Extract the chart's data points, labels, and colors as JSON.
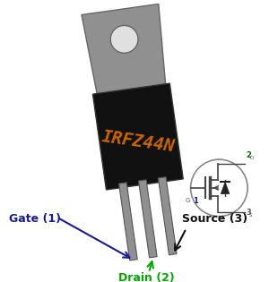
{
  "bg_color": "#ffffff",
  "tab_color": "#909090",
  "tab_edge_color": "#666666",
  "body_color": "#111111",
  "body_edge_color": "#333333",
  "lead_color": "#909090",
  "lead_edge_color": "#555555",
  "hole_color": "#e0e0e0",
  "text_color": "#cc6600",
  "text_label": "IRFZ44N",
  "gate_label": "Gate (1)",
  "gate_color": "#1a1a9e",
  "drain_label": "Drain (2)",
  "drain_color": "#00aa00",
  "source_label": "Source (3)",
  "source_color": "#111111",
  "schem_line_color": "#444444",
  "rotation_deg": -8
}
